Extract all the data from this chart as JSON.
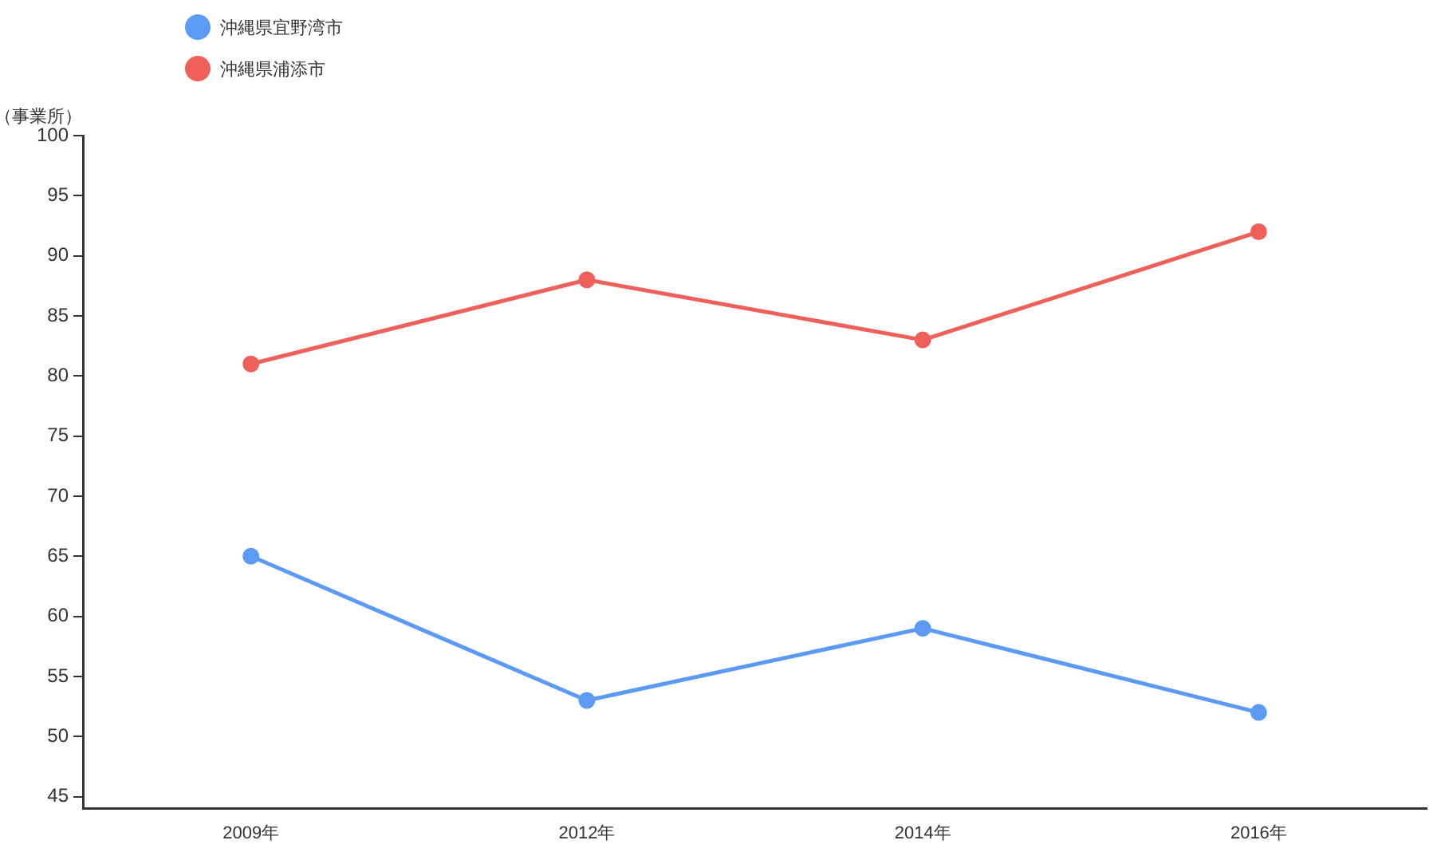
{
  "chart_data": {
    "type": "line",
    "ylabel": "（事業所）",
    "categories": [
      "2009年",
      "2012年",
      "2014年",
      "2016年"
    ],
    "series": [
      {
        "name": "沖縄県宜野湾市",
        "color": "#5b9bf5",
        "values": [
          65,
          53,
          59,
          52
        ]
      },
      {
        "name": "沖縄県浦添市",
        "color": "#f0605a",
        "values": [
          81,
          88,
          83,
          92
        ]
      }
    ],
    "ylim": [
      44,
      100
    ],
    "yticks": [
      45,
      50,
      55,
      60,
      65,
      70,
      75,
      80,
      85,
      90,
      95,
      100
    ],
    "grid": false,
    "legend": "top left",
    "marker": "circle",
    "line_style": "solid"
  }
}
